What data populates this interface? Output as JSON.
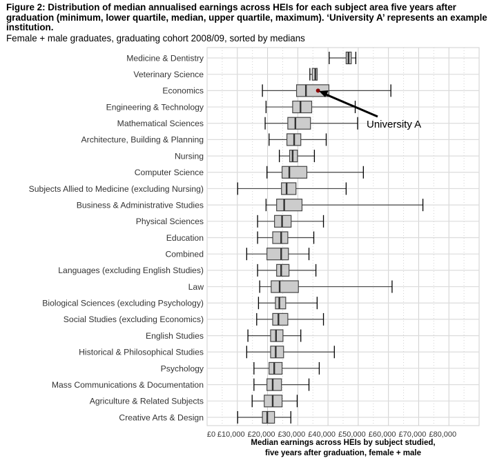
{
  "figure": {
    "title_lines": [
      "Figure 2: Distribution of median annualised earnings across HEIs for each subject area five years after",
      "graduation (minimum, lower quartile, median, upper quartile, maximum). ‘University A’ represents an example",
      "institution."
    ],
    "subtitle": "Female + male graduates, graduating cohort 2008/09, sorted by medians"
  },
  "chart_data": {
    "type": "boxplot",
    "xlabel_lines": [
      "Median earnings across HEIs by subject studied,",
      "five years after graduation, female + male"
    ],
    "xlim": [
      0,
      90000
    ],
    "xticks": [
      0,
      10000,
      20000,
      30000,
      40000,
      50000,
      60000,
      70000,
      80000
    ],
    "xtick_labels": [
      "£0",
      "£10,000",
      "£20,000",
      "£30,000",
      "£40,000",
      "£50,000",
      "£60,000",
      "£70,000",
      "£80,000"
    ],
    "grid": true,
    "colors": {
      "box_fill": "#cccccc",
      "box_stroke": "#444444",
      "highlight": "#8b0000"
    },
    "categories": [
      {
        "label": "Medicine & Dentistry",
        "min": 40400,
        "q1": 46000,
        "median": 46800,
        "q3": 47700,
        "max": 49200
      },
      {
        "label": "Veterinary Science",
        "min": 34000,
        "q1": 34800,
        "median": 35800,
        "q3": 36400,
        "max": 36400
      },
      {
        "label": "Economics",
        "min": 18300,
        "q1": 29600,
        "median": 32700,
        "q3": 40300,
        "max": 60800
      },
      {
        "label": "Engineering & Technology",
        "min": 19500,
        "q1": 28300,
        "median": 30900,
        "q3": 34600,
        "max": 49000
      },
      {
        "label": "Mathematical Sciences",
        "min": 19200,
        "q1": 26700,
        "median": 29200,
        "q3": 34200,
        "max": 49800
      },
      {
        "label": "Architecture, Building & Planning",
        "min": 20500,
        "q1": 26400,
        "median": 28800,
        "q3": 31000,
        "max": 39400
      },
      {
        "label": "Nursing",
        "min": 23900,
        "q1": 27300,
        "median": 28300,
        "q3": 29900,
        "max": 35500
      },
      {
        "label": "Computer Science",
        "min": 19800,
        "q1": 24800,
        "median": 27200,
        "q3": 33000,
        "max": 51700
      },
      {
        "label": "Subjects Allied to Medicine (excluding Nursing)",
        "min": 10100,
        "q1": 24600,
        "median": 26300,
        "q3": 29400,
        "max": 46000
      },
      {
        "label": "Business & Administrative Studies",
        "min": 19500,
        "q1": 23000,
        "median": 25500,
        "q3": 31400,
        "max": 71400
      },
      {
        "label": "Physical Sciences",
        "min": 16700,
        "q1": 22300,
        "median": 24800,
        "q3": 27800,
        "max": 38500
      },
      {
        "label": "Education",
        "min": 16700,
        "q1": 21700,
        "median": 24500,
        "q3": 26700,
        "max": 35300
      },
      {
        "label": "Combined",
        "min": 13100,
        "q1": 19800,
        "median": 24500,
        "q3": 26900,
        "max": 33700
      },
      {
        "label": "Languages (excluding English Studies)",
        "min": 16700,
        "q1": 23000,
        "median": 24500,
        "q3": 27100,
        "max": 36000
      },
      {
        "label": "Law",
        "min": 17400,
        "q1": 21200,
        "median": 24000,
        "q3": 30200,
        "max": 61200
      },
      {
        "label": "Biological Sciences (excluding Psychology)",
        "min": 17000,
        "q1": 22600,
        "median": 23900,
        "q3": 26000,
        "max": 36400
      },
      {
        "label": "Social Studies (excluding Economics)",
        "min": 16400,
        "q1": 21700,
        "median": 23600,
        "q3": 26700,
        "max": 38500
      },
      {
        "label": "English Studies",
        "min": 13500,
        "q1": 21000,
        "median": 22800,
        "q3": 25100,
        "max": 31000
      },
      {
        "label": "Historical & Philosophical Studies",
        "min": 13100,
        "q1": 21000,
        "median": 22700,
        "q3": 25300,
        "max": 42100
      },
      {
        "label": "Psychology",
        "min": 15500,
        "q1": 20500,
        "median": 22200,
        "q3": 24800,
        "max": 37100
      },
      {
        "label": "Mass Communications & Documentation",
        "min": 15500,
        "q1": 19800,
        "median": 21700,
        "q3": 24600,
        "max": 33700
      },
      {
        "label": "Agriculture & Related Subjects",
        "min": 14900,
        "q1": 18900,
        "median": 21700,
        "q3": 24800,
        "max": 29800
      },
      {
        "label": "Creative Arts & Design",
        "min": 10100,
        "q1": 18300,
        "median": 19900,
        "q3": 22300,
        "max": 27700
      }
    ],
    "annotation": {
      "label": "University A",
      "category": "Economics",
      "value": 36700
    }
  }
}
